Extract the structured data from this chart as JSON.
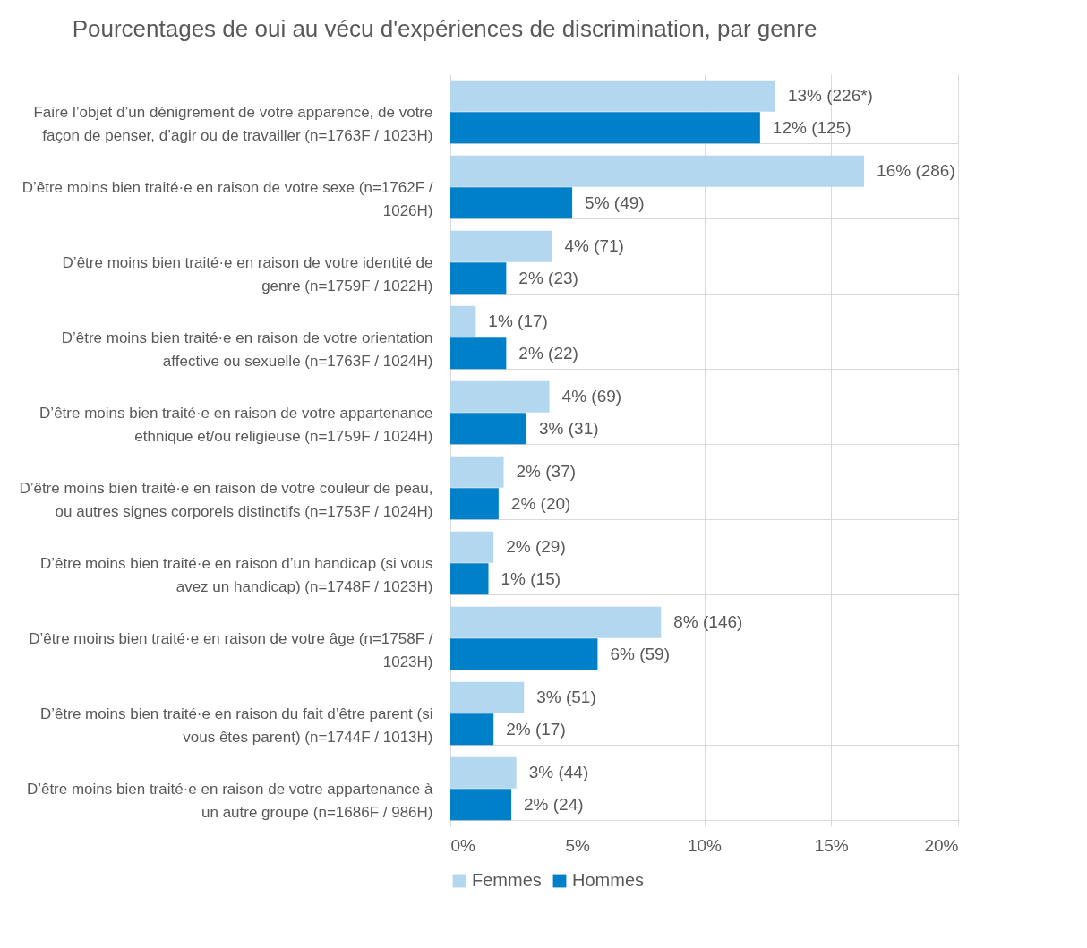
{
  "chart_data": {
    "type": "bar",
    "orientation": "horizontal",
    "title": "Pourcentages de oui au vécu d'expériences de discrimination, par genre",
    "categories": [
      "Faire l’objet d’un dénigrement de votre apparence, de votre façon de penser, d’agir ou de travailler (n=1763F / 1023H)",
      "D’être moins bien traité·e en raison de votre sexe (n=1762F / 1026H)",
      "D’être moins bien traité·e en raison de votre identité de genre (n=1759F / 1022H)",
      "D’être moins bien traité·e en raison de votre orientation affective ou sexuelle (n=1763F / 1024H)",
      "D’être moins bien traité·e en raison de votre appartenance ethnique et/ou religieuse (n=1759F / 1024H)",
      "D’être moins bien traité·e en raison de votre couleur de peau, ou autres signes corporels distinctifs (n=1753F / 1024H)",
      "D’être moins bien traité·e en raison d’un handicap (si vous avez un handicap) (n=1748F / 1023H)",
      "D’être moins bien traité·e en raison de votre âge (n=1758F / 1023H)",
      "D’être moins bien traité·e en raison du fait d’être parent (si vous êtes parent) (n=1744F / 1013H)",
      "D’être moins bien traité·e en raison de votre appartenance à un autre groupe (n=1686F / 986H)"
    ],
    "series": [
      {
        "name": "Femmes",
        "color": "#b3d7ef",
        "values": [
          12.8,
          16.3,
          4.0,
          1.0,
          3.9,
          2.1,
          1.7,
          8.3,
          2.9,
          2.6
        ],
        "value_labels": [
          "13% (226*)",
          "16% (286)",
          "4% (71)",
          "1% (17)",
          "4% (69)",
          "2% (37)",
          "2% (29)",
          "8% (146)",
          "3% (51)",
          "3% (44)"
        ]
      },
      {
        "name": "Hommes",
        "color": "#0080c8",
        "values": [
          12.2,
          4.8,
          2.2,
          2.2,
          3.0,
          1.9,
          1.5,
          5.8,
          1.7,
          2.4
        ],
        "value_labels": [
          "12% (125)",
          "5% (49)",
          "2% (23)",
          "2% (22)",
          "3% (31)",
          "2% (20)",
          "1% (15)",
          "6% (59)",
          "2% (17)",
          "2% (24)"
        ]
      }
    ],
    "xlim": [
      0,
      20
    ],
    "xticks": [
      {
        "value": 0,
        "label": "0%"
      },
      {
        "value": 5,
        "label": "5%"
      },
      {
        "value": 10,
        "label": "10%"
      },
      {
        "value": 15,
        "label": "15%"
      },
      {
        "value": 20,
        "label": "20%"
      }
    ],
    "grid": true,
    "legend": "bottom"
  }
}
